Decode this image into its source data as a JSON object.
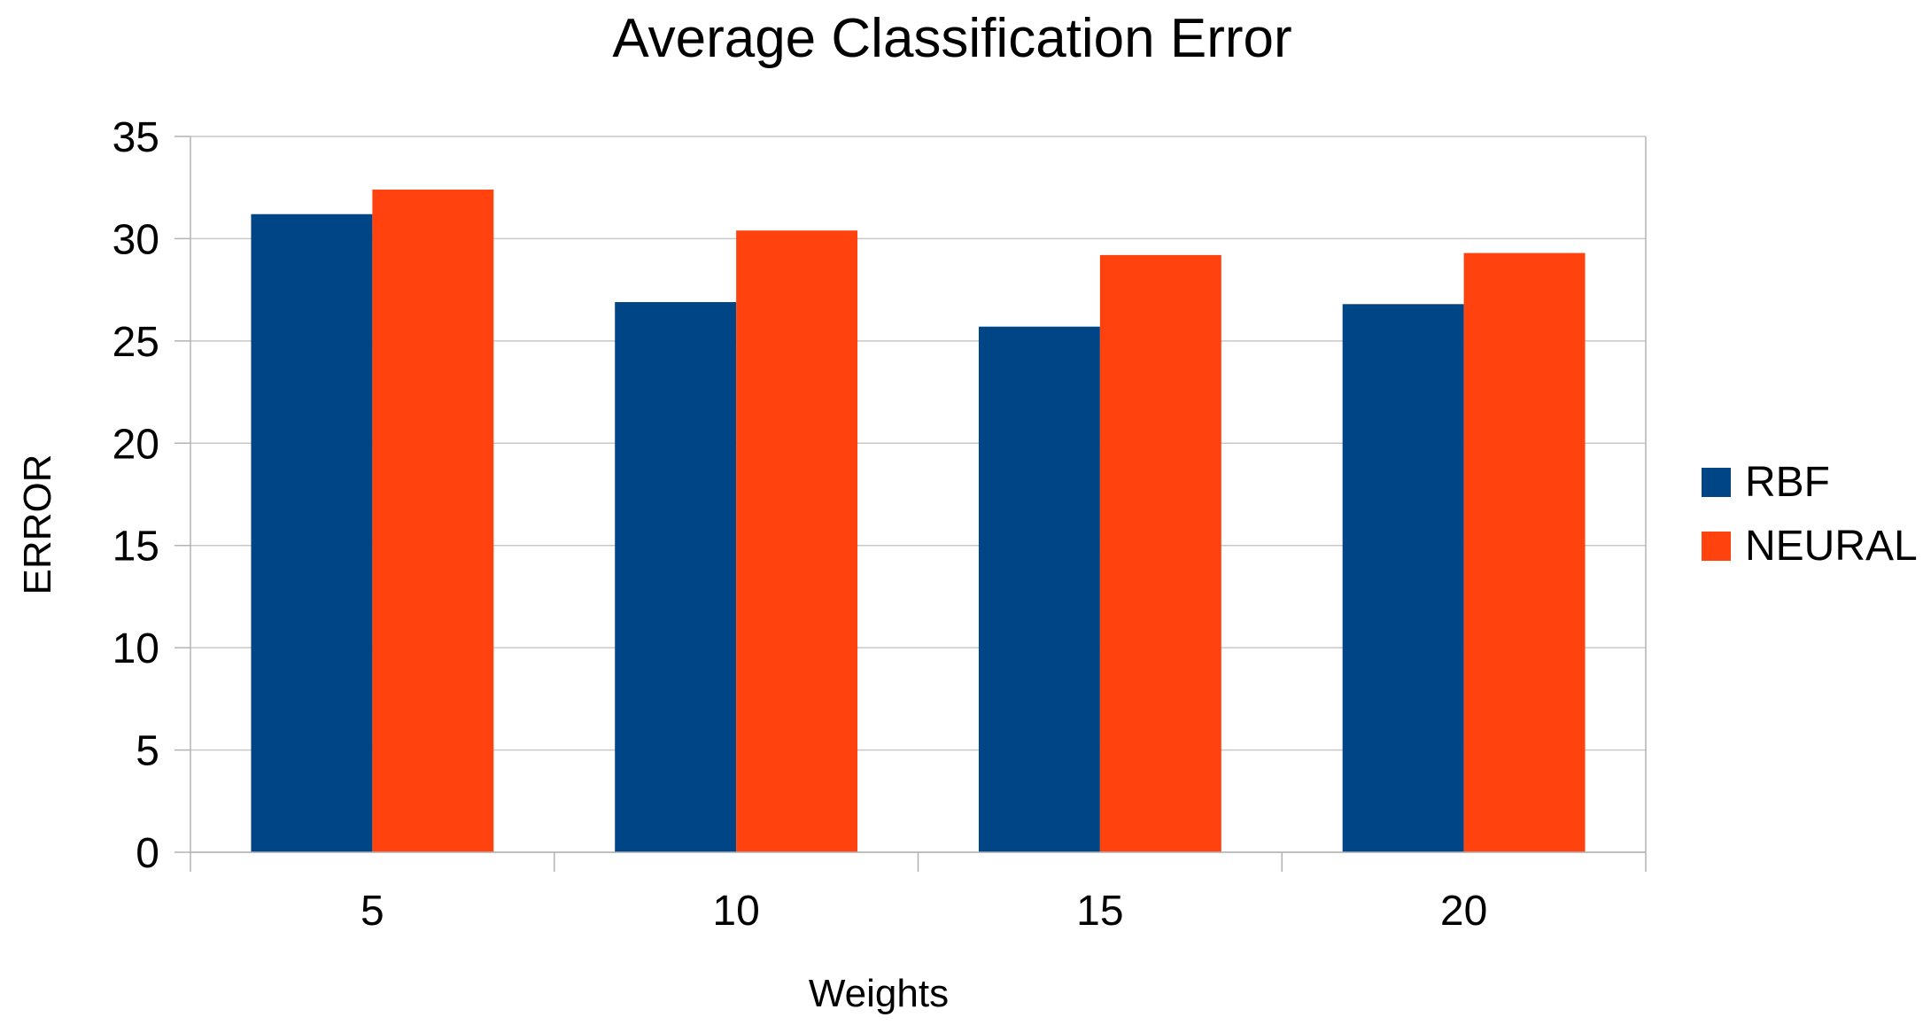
{
  "chart_data": {
    "type": "bar",
    "title": "Average Classification Error",
    "xlabel": "Weights",
    "ylabel": "ERROR",
    "categories": [
      "5",
      "10",
      "15",
      "20"
    ],
    "series": [
      {
        "name": "RBF",
        "color": "#004586",
        "values": [
          31.2,
          26.9,
          25.7,
          26.8
        ]
      },
      {
        "name": "NEURAL",
        "color": "#ff420e",
        "values": [
          32.4,
          30.4,
          29.2,
          29.3
        ]
      }
    ],
    "ylim": [
      0,
      35
    ],
    "yticks": [
      0,
      5,
      10,
      15,
      20,
      25,
      30,
      35
    ],
    "grid": true,
    "legend_position": "right"
  }
}
